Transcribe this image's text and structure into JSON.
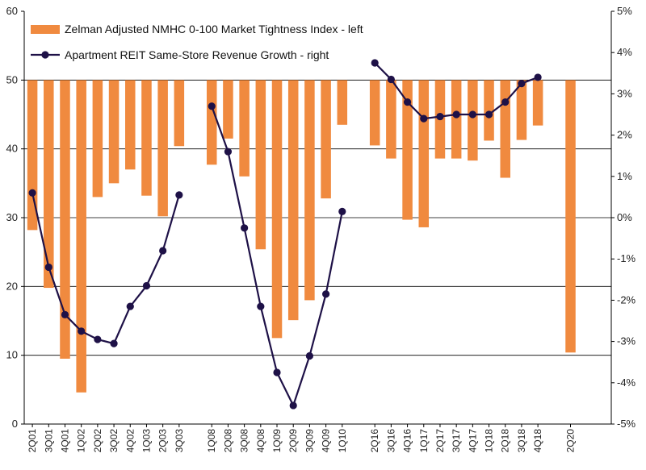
{
  "chart_data": {
    "type": "bar-line-combo",
    "colors": {
      "bar": "#F08A3F",
      "line": "#1E1147",
      "grid": "#000000"
    },
    "legend": {
      "bar_label": "Zelman Adjusted NMHC 0-100 Market Tightness Index - left",
      "line_label": "Apartment REIT Same-Store Revenue Growth - right"
    },
    "left_axis": {
      "min": 0,
      "max": 60,
      "ticks": [
        "0",
        "10",
        "20",
        "30",
        "40",
        "50",
        "60"
      ],
      "baseline": 50
    },
    "right_axis": {
      "min": -5,
      "max": 5,
      "ticks": [
        "-5%",
        "-4%",
        "-3%",
        "-2%",
        "-1%",
        "0%",
        "1%",
        "2%",
        "3%",
        "4%",
        "5%"
      ]
    },
    "slots": 36,
    "categories": [
      {
        "label": "2Q01",
        "slot": 0
      },
      {
        "label": "3Q01",
        "slot": 1
      },
      {
        "label": "4Q01",
        "slot": 2
      },
      {
        "label": "1Q02",
        "slot": 3
      },
      {
        "label": "2Q02",
        "slot": 4
      },
      {
        "label": "3Q02",
        "slot": 5
      },
      {
        "label": "4Q02",
        "slot": 6
      },
      {
        "label": "1Q03",
        "slot": 7
      },
      {
        "label": "2Q03",
        "slot": 8
      },
      {
        "label": "3Q03",
        "slot": 9
      },
      {
        "label": "1Q08",
        "slot": 11
      },
      {
        "label": "2Q08",
        "slot": 12
      },
      {
        "label": "3Q08",
        "slot": 13
      },
      {
        "label": "4Q08",
        "slot": 14
      },
      {
        "label": "1Q09",
        "slot": 15
      },
      {
        "label": "2Q09",
        "slot": 16
      },
      {
        "label": "3Q09",
        "slot": 17
      },
      {
        "label": "4Q09",
        "slot": 18
      },
      {
        "label": "1Q10",
        "slot": 19
      },
      {
        "label": "2Q16",
        "slot": 21
      },
      {
        "label": "3Q16",
        "slot": 22
      },
      {
        "label": "4Q16",
        "slot": 23
      },
      {
        "label": "1Q17",
        "slot": 24
      },
      {
        "label": "2Q17",
        "slot": 25
      },
      {
        "label": "3Q17",
        "slot": 26
      },
      {
        "label": "4Q17",
        "slot": 27
      },
      {
        "label": "1Q18",
        "slot": 28
      },
      {
        "label": "2Q18",
        "slot": 29
      },
      {
        "label": "3Q18",
        "slot": 30
      },
      {
        "label": "4Q18",
        "slot": 31
      },
      {
        "label": "2Q20",
        "slot": 33
      }
    ],
    "series": [
      {
        "name": "Zelman Adjusted NMHC 0-100 Market Tightness Index - left",
        "type": "bar",
        "axis": "left",
        "values": [
          28.2,
          19.8,
          9.5,
          4.6,
          33.0,
          35.0,
          37.0,
          33.2,
          30.2,
          40.4,
          37.7,
          41.5,
          36.0,
          25.4,
          12.5,
          15.1,
          18.0,
          32.8,
          43.5,
          40.5,
          38.6,
          29.7,
          28.6,
          38.6,
          38.6,
          38.3,
          41.2,
          35.8,
          41.3,
          43.4,
          10.4
        ]
      },
      {
        "name": "Apartment REIT Same-Store Revenue Growth - right",
        "type": "line",
        "axis": "right",
        "segments": [
          {
            "slots": [
              0,
              1,
              2,
              3,
              4,
              5,
              6,
              7,
              8,
              9
            ],
            "values": [
              0.6,
              -1.2,
              -2.35,
              -2.75,
              -2.95,
              -3.05,
              -2.15,
              -1.65,
              -0.8,
              0.55
            ]
          },
          {
            "slots": [
              11,
              12,
              13,
              14,
              15,
              16,
              17,
              18,
              19
            ],
            "values": [
              2.7,
              1.6,
              -0.25,
              -2.15,
              -3.75,
              -4.55,
              -3.35,
              -1.85,
              0.15
            ]
          },
          {
            "slots": [
              21,
              22,
              23,
              24,
              25,
              26,
              27,
              28,
              29,
              30,
              31
            ],
            "values": [
              3.75,
              3.35,
              2.8,
              2.4,
              2.45,
              2.5,
              2.5,
              2.5,
              2.8,
              3.25,
              3.4
            ]
          }
        ]
      }
    ]
  }
}
